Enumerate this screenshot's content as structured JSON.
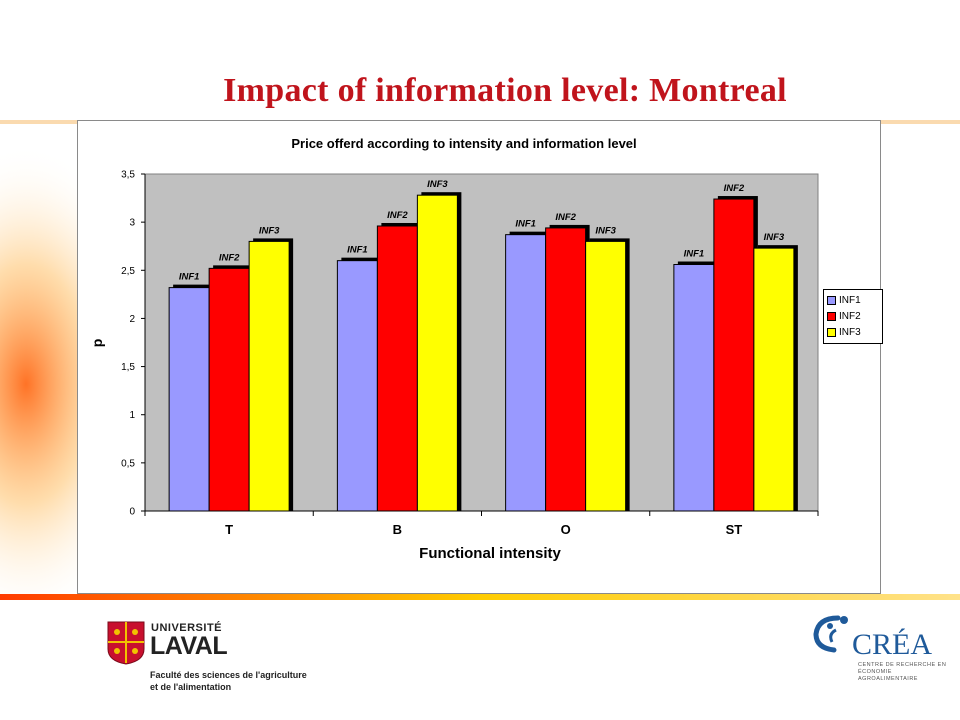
{
  "slide": {
    "title": "Impact of information level: Montreal"
  },
  "chart_data": {
    "type": "bar",
    "title": "Price offerd according to intensity and information level",
    "xlabel": "Functional intensity",
    "ylabel": "p",
    "ylim": [
      0,
      3.5
    ],
    "yticks": [
      "0",
      "0,5",
      "1",
      "1,5",
      "2",
      "2,5",
      "3",
      "3,5"
    ],
    "categories": [
      "T",
      "B",
      "O",
      "ST"
    ],
    "series": [
      {
        "name": "INF1",
        "color": "#9999ff",
        "values": [
          2.32,
          2.6,
          2.87,
          2.56
        ]
      },
      {
        "name": "INF2",
        "color": "#ff0000",
        "values": [
          2.52,
          2.96,
          2.94,
          3.24
        ]
      },
      {
        "name": "INF3",
        "color": "#ffff00",
        "values": [
          2.8,
          3.28,
          2.8,
          2.73
        ]
      }
    ],
    "grid": false,
    "plot_background": "#c0c0c0",
    "legend_position": "right"
  },
  "footer": {
    "university_line1": "UNIVERSITÉ",
    "university_line2": "LAVAL",
    "faculty_line1": "Faculté des sciences de l'agriculture",
    "faculty_line2": "et de l'alimentation",
    "crea_name": "CRÉA",
    "crea_sub1": "CENTRE DE RECHERCHE EN",
    "crea_sub2": "ÉCONOMIE AGROALIMENTAIRE"
  },
  "colors": {
    "title": "#c0141c",
    "accent_orange": "#f5a623",
    "crea_blue": "#1f5a9a"
  }
}
